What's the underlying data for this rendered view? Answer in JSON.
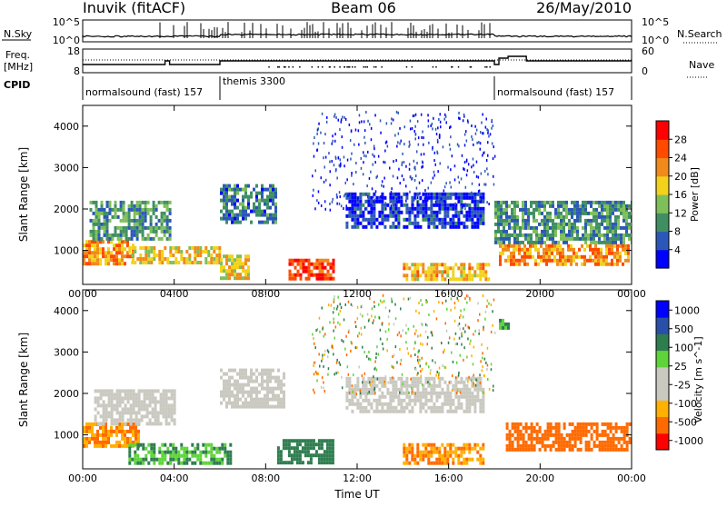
{
  "header": {
    "station": "Inuvik  (fitACF)",
    "beam": "Beam 06",
    "date": "26/May/2010"
  },
  "top_panels": {
    "nsky_label": "N.Sky",
    "nsearch_label": "N.Search",
    "freq_label": "Freq.",
    "freq_unit": "[MHz]",
    "nave_label": "Nave",
    "cpid_label": "CPID",
    "nsky_ticks": [
      "10^5",
      "10^0"
    ],
    "nsearch_ticks": [
      "10^5",
      "10^0"
    ],
    "freq_ticks": [
      "18",
      "8"
    ],
    "nave_ticks": [
      "60",
      "0"
    ],
    "cpid_segments": [
      {
        "name": "normalsound (fast) 157",
        "start": 0.0,
        "end": 6.0
      },
      {
        "name": "themis 3300",
        "start": 6.0,
        "end": 18.0
      },
      {
        "name": "normalsound (fast) 157",
        "start": 18.0,
        "end": 24.0
      }
    ]
  },
  "colors": {
    "background": "#ffffff",
    "axis": "#000000",
    "power_scale": [
      "#0000ff",
      "#2b58b8",
      "#3f8f62",
      "#7fbf5a",
      "#f2d21b",
      "#f08a1a",
      "#ff4a00",
      "#ff0000"
    ],
    "velocity_scale": [
      "#ff0000",
      "#ff6a00",
      "#ffb000",
      "#c9c9c0",
      "#c9c9c0",
      "#5ed43a",
      "#2e7d4f",
      "#2a4fa8",
      "#0000ff"
    ]
  },
  "chart_data": [
    {
      "type": "heatmap",
      "panel": "power",
      "xlabel": "",
      "ylabel": "Slant Range [km]",
      "xlim": [
        0,
        24
      ],
      "ylim": [
        180,
        4500
      ],
      "xticks": [
        "00:00",
        "04:00",
        "08:00",
        "12:00",
        "16:00",
        "20:00",
        "00:00"
      ],
      "yticks": [
        1000,
        2000,
        3000,
        4000
      ],
      "colorbar": {
        "label": "Power [dB]",
        "ticks": [
          4,
          8,
          12,
          16,
          20,
          24,
          28
        ]
      },
      "echo_regions": [
        {
          "time": [
            0.0,
            2.2
          ],
          "range": [
            700,
            1250
          ],
          "value": 24
        },
        {
          "time": [
            0.3,
            3.8
          ],
          "range": [
            1300,
            2200
          ],
          "value": 12
        },
        {
          "time": [
            2.0,
            6.0
          ],
          "range": [
            700,
            1100
          ],
          "value": 20
        },
        {
          "time": [
            6.0,
            7.2
          ],
          "range": [
            300,
            900
          ],
          "value": 20
        },
        {
          "time": [
            6.0,
            8.5
          ],
          "range": [
            1700,
            2600
          ],
          "value": 10
        },
        {
          "time": [
            9.0,
            11.0
          ],
          "range": [
            300,
            800
          ],
          "value": 28
        },
        {
          "time": [
            11.5,
            17.5
          ],
          "range": [
            1600,
            2400
          ],
          "value": 6
        },
        {
          "time": [
            14.0,
            17.8
          ],
          "range": [
            300,
            700
          ],
          "value": 22
        },
        {
          "time": [
            18.2,
            23.9
          ],
          "range": [
            650,
            1150
          ],
          "value": 24
        },
        {
          "time": [
            18.0,
            24.0
          ],
          "range": [
            1200,
            2200
          ],
          "value": 12
        }
      ]
    },
    {
      "type": "heatmap",
      "panel": "velocity",
      "xlabel": "Time UT",
      "ylabel": "Slant Range [km]",
      "xlim": [
        0,
        24
      ],
      "ylim": [
        180,
        4500
      ],
      "xticks": [
        "00:00",
        "04:00",
        "08:00",
        "12:00",
        "16:00",
        "20:00",
        "00:00"
      ],
      "yticks": [
        1000,
        2000,
        3000,
        4000
      ],
      "colorbar": {
        "label": "Velocity [m s^-1]",
        "ticks": [
          1000,
          500,
          100,
          25,
          -25,
          -100,
          -500,
          -1000
        ]
      },
      "echo_regions": [
        {
          "time": [
            0.0,
            2.5
          ],
          "range": [
            700,
            1300
          ],
          "value": -100
        },
        {
          "time": [
            0.5,
            4.0
          ],
          "range": [
            1300,
            2100
          ],
          "value": 0
        },
        {
          "time": [
            2.0,
            6.5
          ],
          "range": [
            300,
            800
          ],
          "value": 100
        },
        {
          "time": [
            6.0,
            8.8
          ],
          "range": [
            1700,
            2600
          ],
          "value": 0
        },
        {
          "time": [
            8.5,
            11.0
          ],
          "range": [
            300,
            900
          ],
          "value": 300
        },
        {
          "time": [
            11.5,
            17.5
          ],
          "range": [
            1600,
            2400
          ],
          "value": 0
        },
        {
          "time": [
            14.0,
            17.5
          ],
          "range": [
            300,
            800
          ],
          "value": -100
        },
        {
          "time": [
            18.5,
            23.9
          ],
          "range": [
            650,
            1300
          ],
          "value": -300
        },
        {
          "time": [
            18.2,
            18.6
          ],
          "range": [
            3600,
            3800
          ],
          "value": 100
        }
      ]
    }
  ]
}
